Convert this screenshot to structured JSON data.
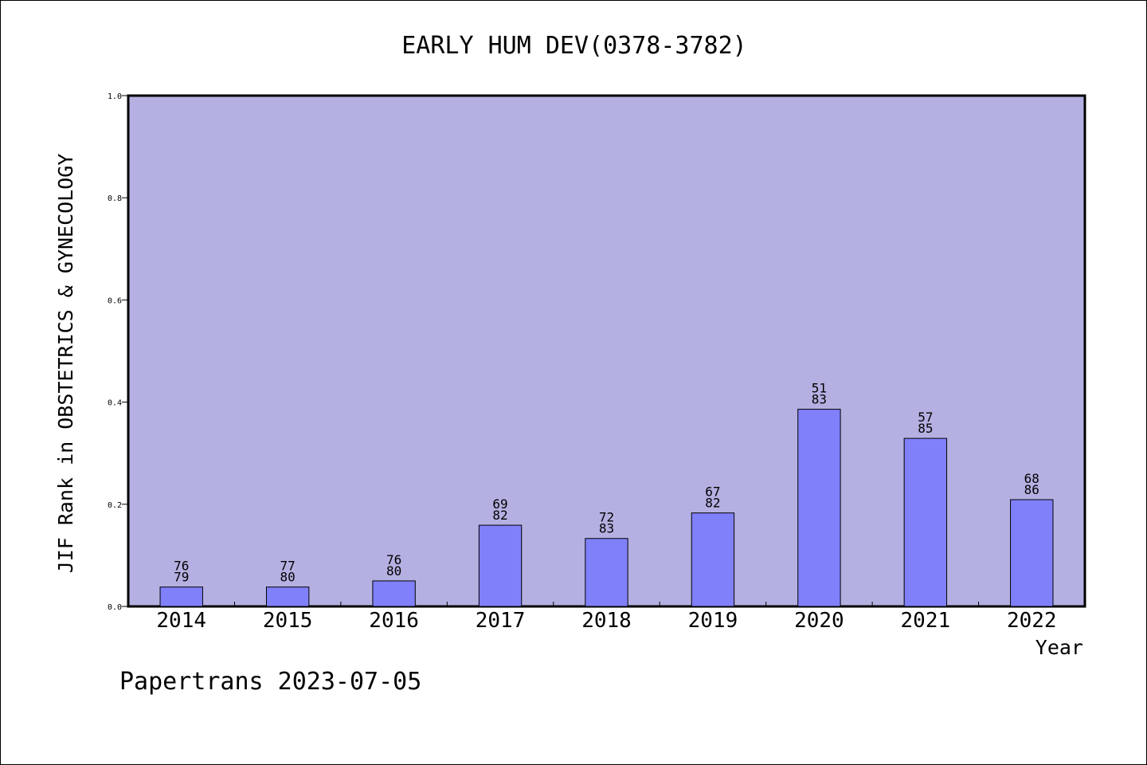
{
  "chart_data": {
    "type": "bar",
    "title": "EARLY HUM DEV(0378-3782)",
    "xlabel": "Year",
    "ylabel": "JIF Rank in OBSTETRICS & GYNECOLOGY",
    "ylim": [
      0,
      1
    ],
    "yticks": [
      "0.0",
      "0.2",
      "0.4",
      "0.6",
      "0.8",
      "1.0"
    ],
    "categories": [
      "2014",
      "2015",
      "2016",
      "2017",
      "2018",
      "2019",
      "2020",
      "2021",
      "2022"
    ],
    "values": [
      0.038,
      0.038,
      0.05,
      0.159,
      0.133,
      0.183,
      0.386,
      0.329,
      0.209
    ],
    "labels_top": [
      "76",
      "77",
      "76",
      "69",
      "72",
      "67",
      "51",
      "57",
      "68"
    ],
    "labels_bottom": [
      "79",
      "80",
      "80",
      "82",
      "83",
      "82",
      "83",
      "85",
      "86"
    ],
    "grid": false,
    "colors": {
      "plot_bg": "#b5b0e2",
      "bar": "#8080fb",
      "bar_edge": "#000000"
    }
  },
  "footer": "Papertrans 2023-07-05"
}
